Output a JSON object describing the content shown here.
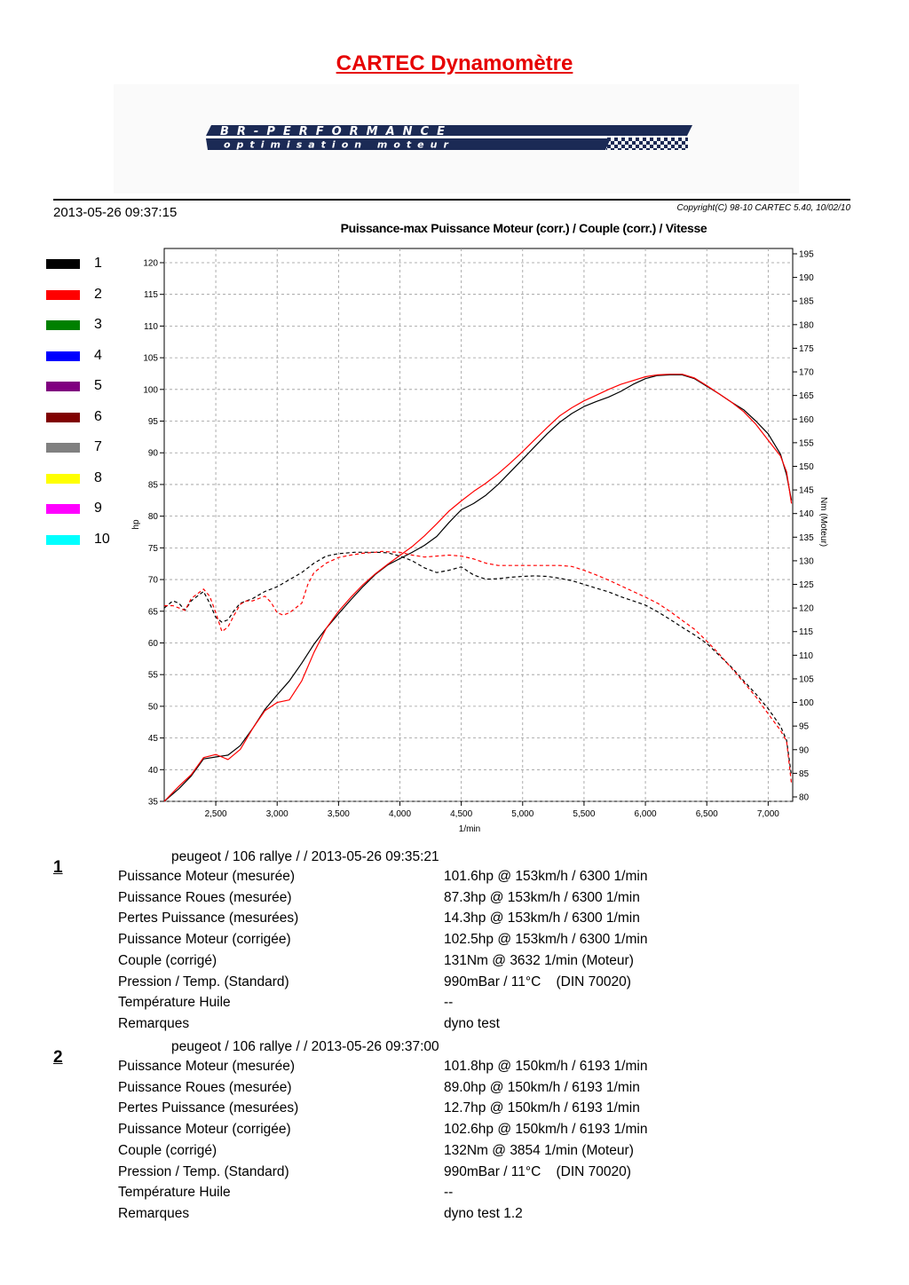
{
  "header": {
    "title": "CARTEC Dynamomètre",
    "logo_text": "BR-PERFORMANCE",
    "logo_subtext": "optimisation moteur",
    "datetime": "2013-05-26 09:37:15",
    "copyright": "Copyright(C) 98-10 CARTEC 5.40, 10/02/10"
  },
  "legend": [
    {
      "label": "1",
      "color": "#000000"
    },
    {
      "label": "2",
      "color": "#ff0000"
    },
    {
      "label": "3",
      "color": "#008000"
    },
    {
      "label": "4",
      "color": "#0000ff"
    },
    {
      "label": "5",
      "color": "#800080"
    },
    {
      "label": "6",
      "color": "#800000"
    },
    {
      "label": "7",
      "color": "#808080"
    },
    {
      "label": "8",
      "color": "#ffff00"
    },
    {
      "label": "9",
      "color": "#ff00ff"
    },
    {
      "label": "10",
      "color": "#00ffff"
    }
  ],
  "chart_data": {
    "type": "line",
    "title": "Puissance-max Puissance Moteur (corr.) / Couple (corr.) / Vitesse",
    "xlabel": "1/min",
    "ylabel": "hp",
    "y2label": "Nm (Moteur)",
    "xlim": [
      2080,
      7200
    ],
    "ylim": [
      35,
      122
    ],
    "y2lim": [
      80,
      197
    ],
    "x_ticks": [
      2500,
      3000,
      3500,
      4000,
      4500,
      5000,
      5500,
      6000,
      6500,
      7000
    ],
    "x_tick_labels": [
      "2,500",
      "3,000",
      "3,500",
      "4,000",
      "4,500",
      "5,000",
      "5,500",
      "6,000",
      "6,500",
      "7,000"
    ],
    "y_ticks": [
      35,
      40,
      45,
      50,
      55,
      60,
      65,
      70,
      75,
      80,
      85,
      90,
      95,
      100,
      105,
      110,
      115,
      120
    ],
    "y2_ticks": [
      80,
      85,
      90,
      95,
      100,
      105,
      110,
      115,
      120,
      125,
      130,
      135,
      140,
      145,
      150,
      155,
      160,
      165,
      170,
      175,
      180,
      185,
      190,
      195
    ],
    "grid": true,
    "series": [
      {
        "name": "1",
        "quantity": "power",
        "axis": "left",
        "color": "#000000",
        "dash": false,
        "x": [
          2080,
          2200,
          2300,
          2400,
          2500,
          2600,
          2700,
          2800,
          2900,
          3000,
          3100,
          3200,
          3300,
          3400,
          3500,
          3600,
          3700,
          3800,
          3900,
          4000,
          4100,
          4200,
          4300,
          4400,
          4500,
          4600,
          4700,
          4800,
          4900,
          5000,
          5100,
          5200,
          5300,
          5400,
          5500,
          5600,
          5700,
          5800,
          5900,
          6000,
          6100,
          6200,
          6300,
          6400,
          6500,
          6600,
          6700,
          6800,
          6900,
          7000,
          7100,
          7150,
          7190
        ],
        "y": [
          35.0,
          37.0,
          39.0,
          41.7,
          42.0,
          42.3,
          43.8,
          46.5,
          49.5,
          51.8,
          54.0,
          56.8,
          59.8,
          62.3,
          64.6,
          66.8,
          68.9,
          70.8,
          72.3,
          73.3,
          74.3,
          75.4,
          76.8,
          79.0,
          81.0,
          82.0,
          83.3,
          85.0,
          87.0,
          89.0,
          91.0,
          93.0,
          94.8,
          96.2,
          97.3,
          98.1,
          98.8,
          99.7,
          100.8,
          101.7,
          102.2,
          102.3,
          102.3,
          101.7,
          100.5,
          99.3,
          98.0,
          96.8,
          95.0,
          93.0,
          89.8,
          86.5,
          82.5
        ]
      },
      {
        "name": "2",
        "quantity": "power",
        "axis": "left",
        "color": "#ff0000",
        "dash": false,
        "x": [
          2080,
          2200,
          2300,
          2400,
          2500,
          2550,
          2600,
          2700,
          2800,
          2900,
          3000,
          3100,
          3200,
          3300,
          3400,
          3500,
          3600,
          3700,
          3800,
          3900,
          4000,
          4100,
          4200,
          4300,
          4400,
          4500,
          4600,
          4700,
          4800,
          4900,
          5000,
          5100,
          5200,
          5300,
          5400,
          5500,
          5600,
          5700,
          5800,
          5900,
          6000,
          6100,
          6200,
          6300,
          6400,
          6500,
          6600,
          6700,
          6800,
          6900,
          7000,
          7100,
          7150,
          7190
        ],
        "y": [
          35.0,
          37.4,
          39.2,
          41.9,
          42.4,
          42.0,
          41.6,
          43.2,
          46.5,
          49.3,
          50.6,
          51.0,
          54.0,
          58.5,
          62.3,
          65.0,
          67.2,
          69.2,
          70.9,
          72.4,
          73.8,
          75.2,
          76.9,
          78.8,
          80.8,
          82.4,
          83.9,
          85.2,
          86.7,
          88.4,
          90.2,
          92.1,
          94.0,
          95.8,
          97.1,
          98.2,
          99.1,
          100.0,
          100.8,
          101.4,
          102.0,
          102.3,
          102.4,
          102.4,
          101.8,
          100.6,
          99.3,
          98.0,
          96.5,
          94.5,
          92.0,
          89.5,
          87.0,
          82.0
        ]
      },
      {
        "name": "1",
        "quantity": "torque",
        "axis": "right",
        "color": "#000000",
        "dash": true,
        "x": [
          2080,
          2150,
          2200,
          2250,
          2300,
          2350,
          2400,
          2450,
          2500,
          2550,
          2600,
          2650,
          2700,
          2750,
          2800,
          2900,
          3000,
          3100,
          3200,
          3300,
          3400,
          3500,
          3632,
          3700,
          3800,
          3900,
          4000,
          4100,
          4200,
          4300,
          4400,
          4500,
          4600,
          4700,
          4800,
          4900,
          5000,
          5100,
          5200,
          5300,
          5400,
          5500,
          5600,
          5700,
          5800,
          5900,
          6000,
          6100,
          6200,
          6300,
          6400,
          6500,
          6600,
          6700,
          6800,
          6900,
          7000,
          7100,
          7150,
          7190
        ],
        "y": [
          120.0,
          121.5,
          121.0,
          119.5,
          121.5,
          122.5,
          123.5,
          121.0,
          118.0,
          117.0,
          117.5,
          119.5,
          121.0,
          121.5,
          122.0,
          123.5,
          124.5,
          126.0,
          127.5,
          129.5,
          131.0,
          131.5,
          131.8,
          131.8,
          131.8,
          131.7,
          131.0,
          130.0,
          128.5,
          127.5,
          128.0,
          128.7,
          127.0,
          126.1,
          126.2,
          126.5,
          126.7,
          126.8,
          126.7,
          126.3,
          125.8,
          125.0,
          124.2,
          123.4,
          122.4,
          121.5,
          120.6,
          119.2,
          117.6,
          115.9,
          114.3,
          112.5,
          110.0,
          107.5,
          104.6,
          101.8,
          98.7,
          95.0,
          92.0,
          84.5
        ]
      },
      {
        "name": "2",
        "quantity": "torque",
        "axis": "right",
        "color": "#ff0000",
        "dash": true,
        "x": [
          2080,
          2150,
          2200,
          2250,
          2300,
          2350,
          2400,
          2450,
          2500,
          2550,
          2600,
          2650,
          2700,
          2750,
          2800,
          2850,
          2900,
          2950,
          3000,
          3050,
          3100,
          3150,
          3200,
          3250,
          3300,
          3400,
          3500,
          3600,
          3700,
          3800,
          3854,
          3900,
          4000,
          4100,
          4200,
          4300,
          4400,
          4500,
          4600,
          4700,
          4800,
          4900,
          5000,
          5100,
          5200,
          5300,
          5400,
          5500,
          5600,
          5700,
          5800,
          5900,
          6000,
          6100,
          6200,
          6300,
          6400,
          6500,
          6600,
          6700,
          6800,
          6900,
          7000,
          7100,
          7150,
          7190
        ],
        "y": [
          120.5,
          120.5,
          120.0,
          119.5,
          122.0,
          123.0,
          124.0,
          122.5,
          119.0,
          115.0,
          116.0,
          118.5,
          120.8,
          121.5,
          121.5,
          122.0,
          122.5,
          121.2,
          119.0,
          118.5,
          119.0,
          120.0,
          121.0,
          125.0,
          127.5,
          129.5,
          130.7,
          131.2,
          131.6,
          131.8,
          132.0,
          131.9,
          131.8,
          131.2,
          130.8,
          131.0,
          131.2,
          131.0,
          130.4,
          129.5,
          129.0,
          129.0,
          129.0,
          129.0,
          129.0,
          129.0,
          128.8,
          128.0,
          127.0,
          125.9,
          124.7,
          123.5,
          122.3,
          121.0,
          119.3,
          117.4,
          115.5,
          113.0,
          110.3,
          107.3,
          104.3,
          101.2,
          97.6,
          94.1,
          91.8,
          82.8
        ]
      }
    ]
  },
  "tests": [
    {
      "number": "1",
      "header": "peugeot / 106 rallye /  / 2013-05-26 09:35:21",
      "rows": [
        {
          "label": "Puissance Moteur (mesurée)",
          "value": "101.6hp @ 153km/h / 6300 1/min"
        },
        {
          "label": "Puissance Roues (mesurée)",
          "value": "87.3hp @ 153km/h / 6300 1/min"
        },
        {
          "label": "Pertes Puissance (mesurées)",
          "value": "14.3hp @ 153km/h / 6300 1/min"
        },
        {
          "label": "Puissance Moteur (corrigée)",
          "value": "102.5hp @ 153km/h / 6300 1/min"
        },
        {
          "label": "Couple (corrigé)",
          "value": "131Nm @ 3632 1/min (Moteur)"
        },
        {
          "label": "Pression / Temp. (Standard)",
          "value": "990mBar / 11°C    (DIN 70020)"
        },
        {
          "label": "Température Huile",
          "value": "--"
        },
        {
          "label": "Remarques",
          "value": "dyno test"
        }
      ]
    },
    {
      "number": "2",
      "header": "peugeot / 106 rallye /  / 2013-05-26 09:37:00",
      "rows": [
        {
          "label": "Puissance Moteur (mesurée)",
          "value": "101.8hp @ 150km/h / 6193 1/min"
        },
        {
          "label": "Puissance Roues (mesurée)",
          "value": "89.0hp @ 150km/h / 6193 1/min"
        },
        {
          "label": "Pertes Puissance (mesurées)",
          "value": "12.7hp @ 150km/h / 6193 1/min"
        },
        {
          "label": "Puissance Moteur (corrigée)",
          "value": "102.6hp @ 150km/h / 6193 1/min"
        },
        {
          "label": "Couple (corrigé)",
          "value": "132Nm @ 3854 1/min (Moteur)"
        },
        {
          "label": "Pression / Temp. (Standard)",
          "value": "990mBar / 11°C    (DIN 70020)"
        },
        {
          "label": "Température Huile",
          "value": "--"
        },
        {
          "label": "Remarques",
          "value": "dyno test 1.2"
        }
      ]
    }
  ]
}
